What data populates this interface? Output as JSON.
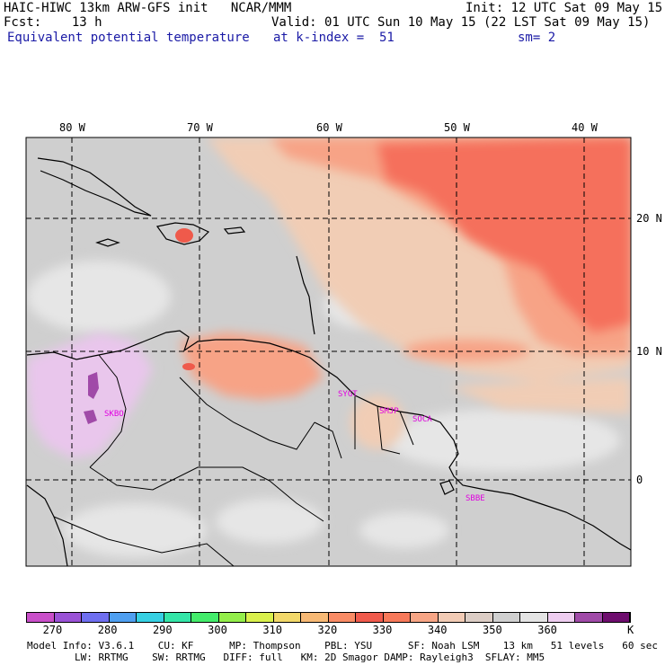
{
  "header": {
    "model_title": "HAIC-HIWC 13km ARW-GFS init   NCAR/MMM",
    "init": "Init: 12 UTC Sat 09 May 15",
    "fcst": "Fcst:    13 h",
    "valid": "Valid: 01 UTC Sun 10 May 15 (22 LST Sat 09 May 15)",
    "field": "Equivalent potential temperature",
    "level": "at k-index =  51",
    "smoothing": "sm= 2"
  },
  "map": {
    "lon_labels": [
      "80 W",
      "70 W",
      "60 W",
      "50 W",
      "40 W"
    ],
    "lat_labels": [
      "20 N",
      "10 N",
      "0"
    ],
    "stations": [
      "SKBO",
      "SYGT",
      "SMJP",
      "SOCA",
      "SBBE"
    ]
  },
  "colorbar": {
    "unit": "K",
    "tick_labels": [
      "270",
      "280",
      "290",
      "300",
      "310",
      "320",
      "330",
      "340",
      "350",
      "360"
    ],
    "colors": [
      "#c94fc9",
      "#9a52d6",
      "#6f6ff0",
      "#4f9ff0",
      "#36d0e3",
      "#34e6a8",
      "#43ec6b",
      "#93ee4a",
      "#d9f04c",
      "#f2d86a",
      "#f7b975",
      "#f98b65",
      "#f05a4c",
      "#f7795a",
      "#f7a585",
      "#f2cbb5",
      "#dccdc5",
      "#d0d0d0",
      "#e4e4e4",
      "#eecdf0",
      "#a04aa8",
      "#6e0d6e"
    ]
  },
  "footer": {
    "line1": "Model Info: V3.6.1    CU: KF      MP: Thompson    PBL: YSU      SF: Noah LSM    13 km   51 levels   60 sec",
    "line2": "        LW: RRTMG    SW: RRTMG   DIFF: full   KM: 2D Smagor DAMP: Rayleigh3  SFLAY: MM5"
  }
}
